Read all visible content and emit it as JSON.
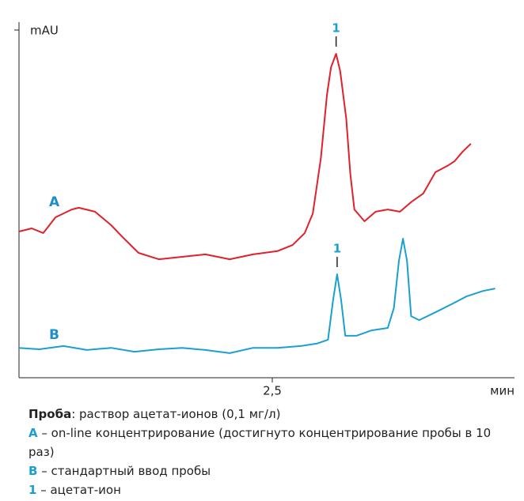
{
  "chart_data": {
    "type": "line",
    "xlabel": "мин",
    "ylabel": "mAU",
    "xlim": [
      0,
      4.9
    ],
    "ylim": [
      0,
      100
    ],
    "xticks": [
      {
        "value": 2.5,
        "label": "2,5"
      }
    ],
    "peak_label": "1",
    "series": [
      {
        "name": "A",
        "color": "#e0212b",
        "x": [
          0,
          0.125,
          0.24,
          0.36,
          0.52,
          0.59,
          0.75,
          0.91,
          1.02,
          1.18,
          1.38,
          1.61,
          1.84,
          2.08,
          2.31,
          2.55,
          2.7,
          2.82,
          2.9,
          2.98,
          3.04,
          3.08,
          3.13,
          3.17,
          3.23,
          3.27,
          3.31,
          3.41,
          3.52,
          3.64,
          3.76,
          3.88,
          3.99,
          4.11,
          4.23,
          4.3,
          4.38,
          4.46
        ],
        "values": [
          41.1,
          42.0,
          40.7,
          45.1,
          47.3,
          47.8,
          46.7,
          42.9,
          39.6,
          35.1,
          33.3,
          34.0,
          34.7,
          33.3,
          34.7,
          35.6,
          37.3,
          40.7,
          46.2,
          61.8,
          79.6,
          87.3,
          91.1,
          86.2,
          72.9,
          57.3,
          47.3,
          44.0,
          46.7,
          47.3,
          46.7,
          49.6,
          51.8,
          57.8,
          59.6,
          60.9,
          63.6,
          65.8
        ]
      },
      {
        "name": "B",
        "color": "#1aa0d0",
        "x": [
          0,
          0.2,
          0.44,
          0.67,
          0.91,
          1.14,
          1.38,
          1.61,
          1.84,
          2.08,
          2.31,
          2.55,
          2.78,
          2.94,
          3.05,
          3.1,
          3.14,
          3.18,
          3.22,
          3.33,
          3.48,
          3.64,
          3.7,
          3.75,
          3.79,
          3.83,
          3.87,
          3.95,
          4.11,
          4.27,
          4.42,
          4.58,
          4.7
        ],
        "values": [
          8.4,
          8.0,
          8.9,
          7.8,
          8.4,
          7.3,
          8.0,
          8.4,
          7.8,
          6.9,
          8.4,
          8.4,
          8.9,
          9.6,
          10.7,
          21.8,
          29.1,
          21.8,
          11.8,
          11.8,
          13.3,
          14.0,
          19.6,
          32.9,
          39.1,
          32.9,
          17.3,
          16.2,
          18.4,
          20.7,
          22.9,
          24.4,
          25.1
        ]
      }
    ]
  },
  "caption": [
    {
      "key": "Проба",
      "text": ": раствор ацетат-ионов (0,1 мг/л)"
    },
    {
      "key": "A",
      "text": " – on-line концентрирование (достигнуто концентрирование пробы в 10 раз)"
    },
    {
      "key": "B",
      "text": " – стандартный ввод пробы"
    },
    {
      "key": "1",
      "text": " – ацетат-ион"
    }
  ]
}
